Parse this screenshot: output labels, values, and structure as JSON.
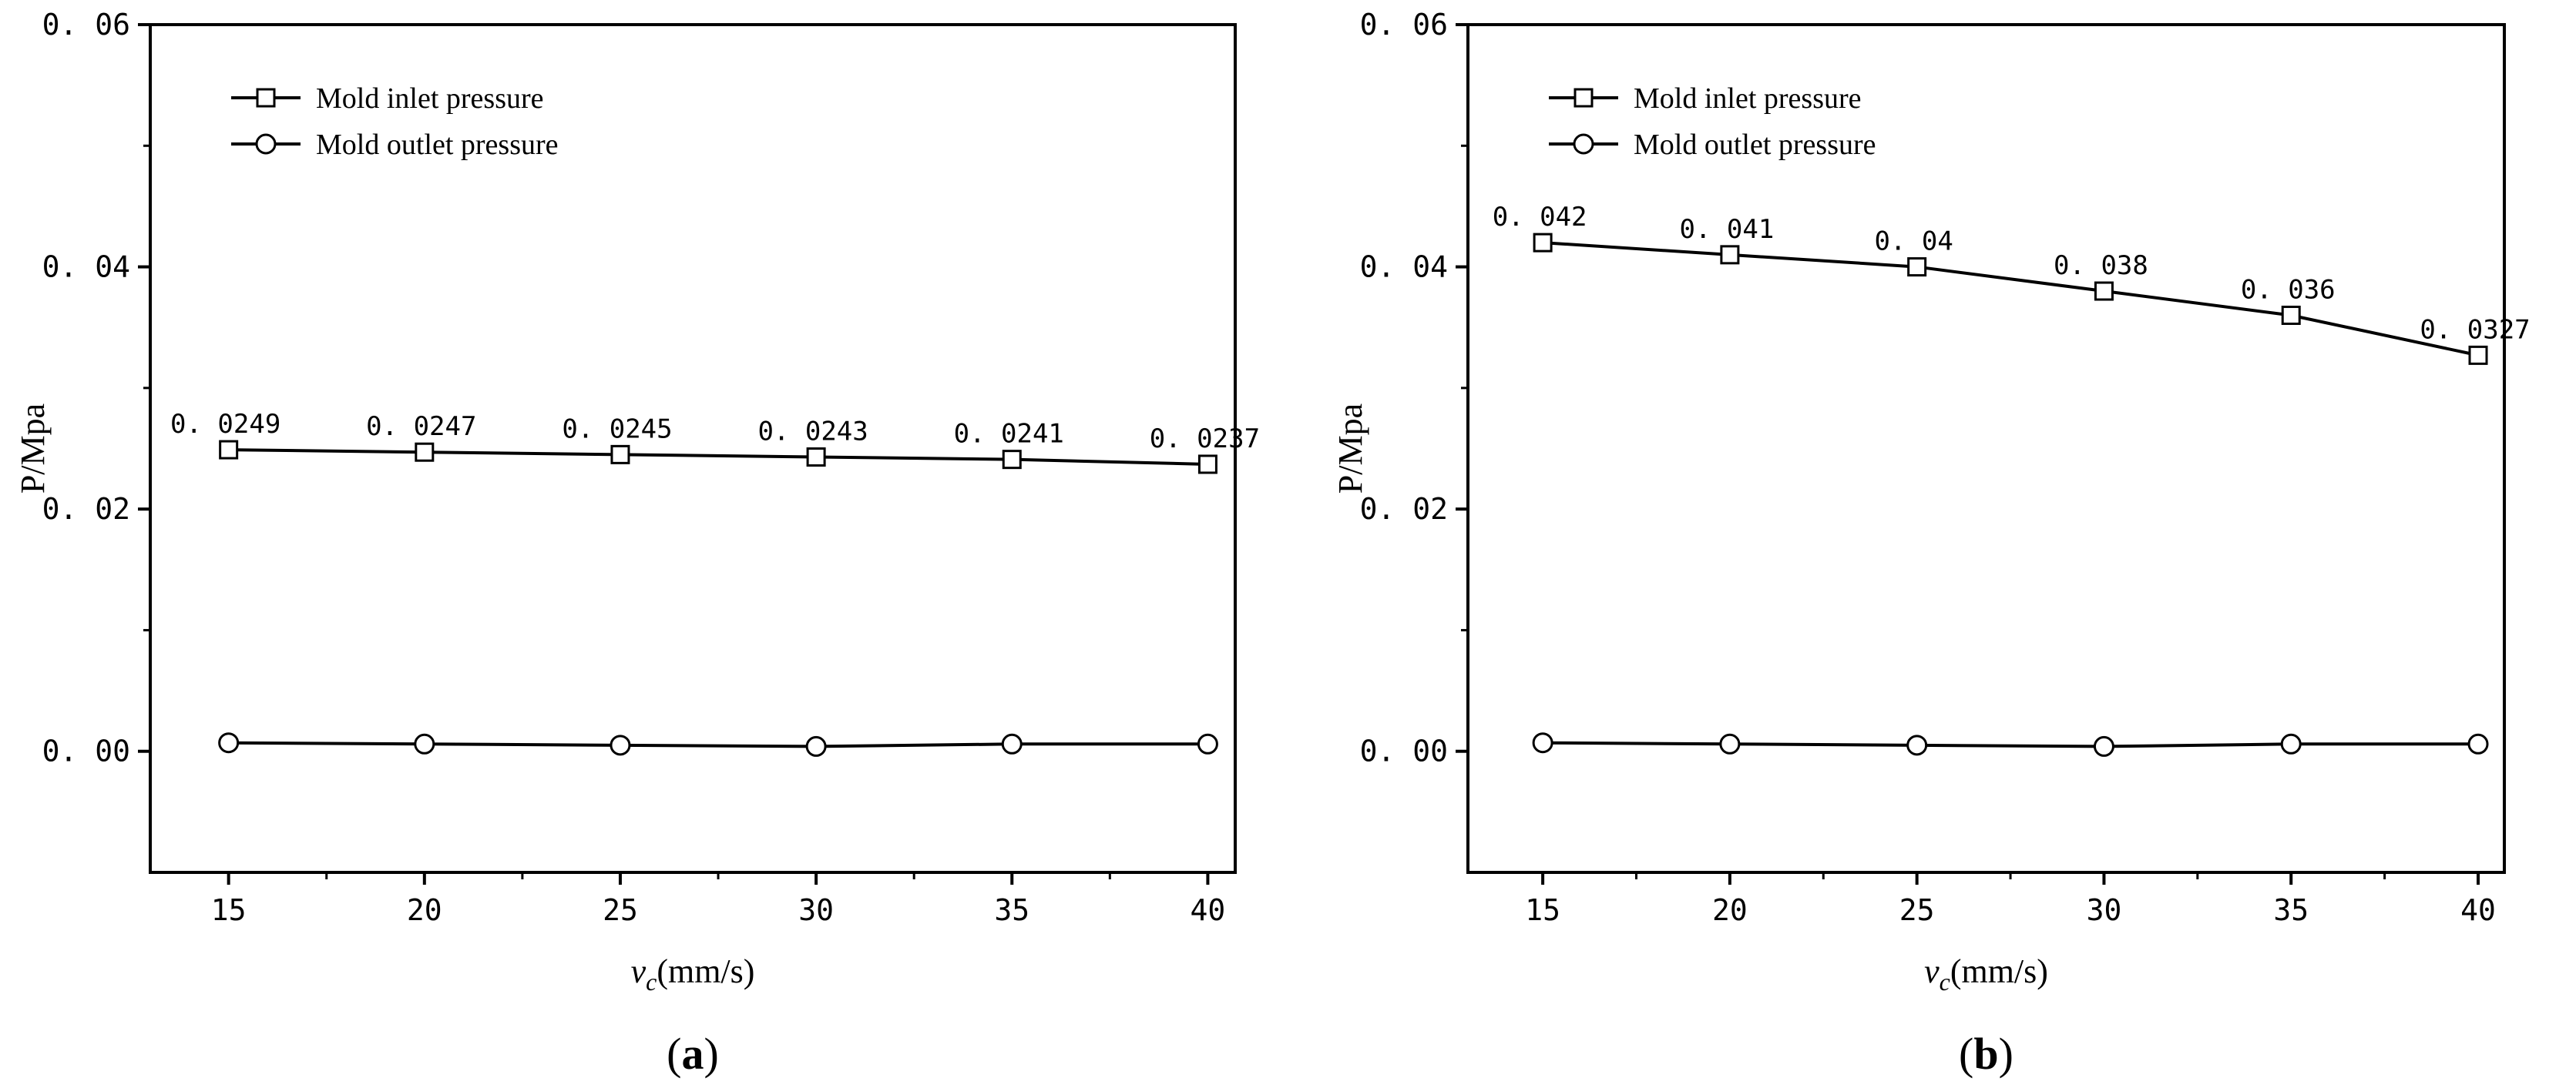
{
  "figure": {
    "panels": [
      {
        "label_open": "(",
        "label_letter": "a",
        "label_close": ")"
      },
      {
        "label_open": "(",
        "label_letter": "b",
        "label_close": ")"
      }
    ]
  },
  "chart_data": [
    {
      "type": "line",
      "panel": "a",
      "ylabel": "P/Mpa",
      "xlabel_var": "v",
      "xlabel_sub": "c",
      "xlabel_unit": "(mm/s)",
      "x": [
        15,
        20,
        25,
        30,
        35,
        40
      ],
      "xticks": [
        "15",
        "20",
        "25",
        "30",
        "35",
        "40"
      ],
      "xlim": [
        13,
        40.7
      ],
      "ylim": [
        -0.01,
        0.06
      ],
      "yticks": [
        {
          "value": 0,
          "label": "0. 00"
        },
        {
          "value": 0.02,
          "label": "0. 02"
        },
        {
          "value": 0.04,
          "label": "0. 04"
        },
        {
          "value": 0.06,
          "label": "0. 06"
        }
      ],
      "yminor": [
        0.01,
        0.03,
        0.05
      ],
      "xminor": [
        17.5,
        22.5,
        27.5,
        32.5,
        37.5
      ],
      "grid": false,
      "legend_position": "top-left",
      "series": [
        {
          "name": "Mold inlet pressure",
          "marker": "square",
          "values": [
            0.0249,
            0.0247,
            0.0245,
            0.0243,
            0.0241,
            0.0237
          ],
          "labels": [
            "0. 0249",
            "0. 0247",
            "0. 0245",
            "0. 0243",
            "0. 0241",
            "0. 0237"
          ]
        },
        {
          "name": "Mold outlet pressure",
          "marker": "circle",
          "values": [
            0.0007,
            0.0006,
            0.0005,
            0.0004,
            0.0006,
            0.0006
          ],
          "labels": []
        }
      ]
    },
    {
      "type": "line",
      "panel": "b",
      "ylabel": "P/Mpa",
      "xlabel_var": "v",
      "xlabel_sub": "c",
      "xlabel_unit": "(mm/s)",
      "x": [
        15,
        20,
        25,
        30,
        35,
        40
      ],
      "xticks": [
        "15",
        "20",
        "25",
        "30",
        "35",
        "40"
      ],
      "xlim": [
        13,
        40.7
      ],
      "ylim": [
        -0.01,
        0.06
      ],
      "yticks": [
        {
          "value": 0,
          "label": "0. 00"
        },
        {
          "value": 0.02,
          "label": "0. 02"
        },
        {
          "value": 0.04,
          "label": "0. 04"
        },
        {
          "value": 0.06,
          "label": "0. 06"
        }
      ],
      "yminor": [
        0.01,
        0.03,
        0.05
      ],
      "xminor": [
        17.5,
        22.5,
        27.5,
        32.5,
        37.5
      ],
      "grid": false,
      "legend_position": "top-left",
      "series": [
        {
          "name": "Mold inlet pressure",
          "marker": "square",
          "values": [
            0.042,
            0.041,
            0.04,
            0.038,
            0.036,
            0.0327
          ],
          "labels": [
            "0. 042",
            "0. 041",
            "0. 04",
            "0. 038",
            "0. 036",
            "0. 0327"
          ]
        },
        {
          "name": "Mold outlet pressure",
          "marker": "circle",
          "values": [
            0.0007,
            0.0006,
            0.0005,
            0.0004,
            0.0006,
            0.0006
          ],
          "labels": []
        }
      ]
    }
  ]
}
